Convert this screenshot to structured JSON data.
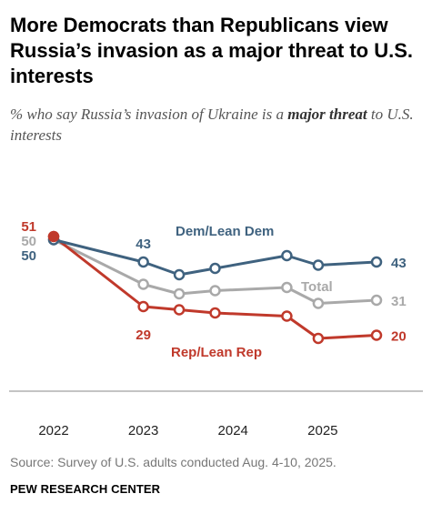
{
  "header": {
    "title": "More Democrats than Republicans view Russia’s invasion as a major threat to U.S. interests",
    "subtitle_before": "% who say Russia’s invasion of Ukraine is a ",
    "subtitle_bold": "major threat",
    "subtitle_after": " to U.S. interests"
  },
  "footer": {
    "source": "Source: Survey of U.S. adults conducted Aug. 4-10, 2025.",
    "brand": "PEW RESEARCH CENTER"
  },
  "chart_data": {
    "type": "line",
    "x": [
      2022.0,
      2023.0,
      2023.4,
      2023.8,
      2024.6,
      2024.95,
      2025.6
    ],
    "xlim": [
      2022.0,
      2025.6
    ],
    "ylim": [
      15,
      55
    ],
    "x_ticks": [
      "2022",
      "2023",
      "2024",
      "2025"
    ],
    "x_tick_values": [
      2022,
      2023,
      2024,
      2025
    ],
    "series": [
      {
        "name": "Dem/Lean Dem",
        "values": [
          50,
          43,
          39,
          41,
          45,
          42,
          43
        ],
        "color": "#3f627f",
        "labels": {
          "0": "50",
          "1": "43",
          "6": "43"
        }
      },
      {
        "name": "Total",
        "values": [
          50,
          36,
          33,
          34,
          35,
          30,
          31
        ],
        "color": "#a9a9a9",
        "labels": {
          "0": "50",
          "6": "31"
        }
      },
      {
        "name": "Rep/Lean Rep",
        "values": [
          51,
          29,
          28,
          27,
          26,
          19,
          20
        ],
        "color": "#c0392b",
        "labels": {
          "0": "51",
          "1": "29",
          "6": "20"
        }
      }
    ]
  }
}
